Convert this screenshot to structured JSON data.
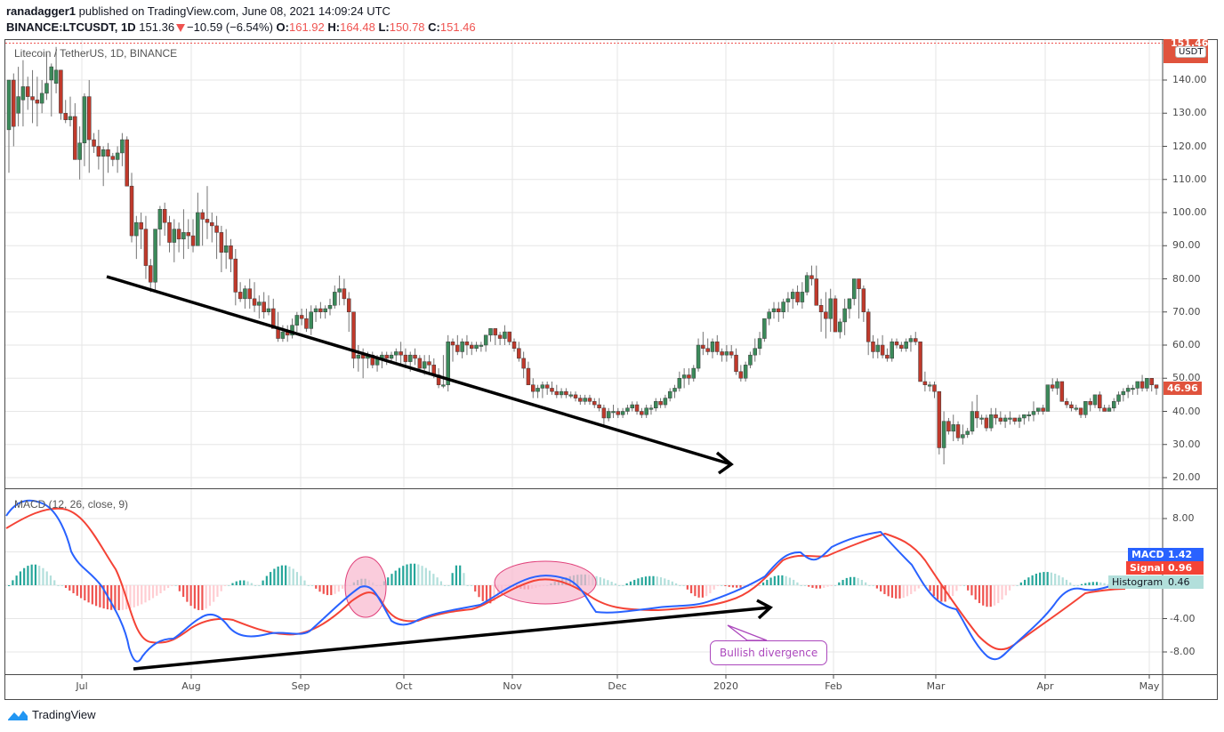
{
  "header": {
    "author": "ranadagger1",
    "published_text": "published on TradingView.com, June 08, 2021 14:09:24 UTC",
    "symbol": "BINANCE:LTCUSDT, 1D",
    "last": "151.36",
    "change": "−10.59 (−6.54%)",
    "o_label": "O:",
    "o": "161.92",
    "h_label": "H:",
    "h": "164.48",
    "l_label": "L:",
    "l": "150.78",
    "c_label": "C:",
    "c": "151.46"
  },
  "price_pane": {
    "legend": "Litecoin / TetherUS, 1D, BINANCE",
    "axis_labels": [
      "140.00",
      "130.00",
      "120.00",
      "110.00",
      "100.00",
      "90.00",
      "80.00",
      "70.00",
      "60.00",
      "50.00",
      "40.00",
      "30.00",
      "20.00"
    ],
    "current_price_tag": "46.96",
    "top_price_tag": "151.46",
    "currency_badge": "USDT"
  },
  "macd_pane": {
    "legend": "MACD (12, 26, close, 9)",
    "axis_labels": [
      "8.00",
      "-4.00",
      "-8.00"
    ],
    "tags": [
      {
        "label": "MACD",
        "value": "1.42",
        "color": "#2962ff"
      },
      {
        "label": "Signal",
        "value": "0.96",
        "color": "#f44336"
      },
      {
        "label": "Histogram",
        "value": "0.46",
        "color": "#b2dfdb"
      }
    ],
    "annotation": "Bullish divergence"
  },
  "time_axis": [
    "Jul",
    "Aug",
    "Sep",
    "Oct",
    "Nov",
    "Dec",
    "2020",
    "Feb",
    "Mar",
    "Apr",
    "May"
  ],
  "brand": "TradingView",
  "colors": {
    "up": "#26a69a",
    "up_candle": "#3b8a5a",
    "down_candle": "#c0392b",
    "macd": "#2962ff",
    "signal": "#f44336",
    "tag_red": "#e0533d"
  },
  "chart_data": [
    {
      "type": "candlestick",
      "title": "Litecoin / TetherUS, 1D, BINANCE",
      "xlabel": "",
      "ylabel": "USDT",
      "ylim": [
        18,
        150
      ],
      "x_ticks": [
        "Jul",
        "Aug",
        "Sep",
        "Oct",
        "Nov",
        "Dec",
        "2020",
        "Feb",
        "Mar",
        "Apr",
        "May"
      ],
      "close_path": [
        [
          "Jun (mid)",
          125
        ],
        [
          "late Jun",
          138
        ],
        [
          "Jul",
          122
        ],
        [
          "Jul (mid)",
          80
        ],
        [
          "late Jul",
          97
        ],
        [
          "Aug",
          98
        ],
        [
          "Aug (mid)",
          88
        ],
        [
          "late Aug",
          73
        ],
        [
          "Sep",
          66
        ],
        [
          "Sep (mid)",
          70
        ],
        [
          "late Sep",
          77
        ],
        [
          "Oct",
          55
        ],
        [
          "Oct (mid)",
          57
        ],
        [
          "late Oct",
          54
        ],
        [
          "Nov",
          60
        ],
        [
          "Nov (mid)",
          63
        ],
        [
          "late Nov",
          47
        ],
        [
          "Dec",
          47
        ],
        [
          "Dec (mid)",
          41
        ],
        [
          "2020",
          41
        ],
        [
          "Jan (mid)",
          58
        ],
        [
          "late Jan",
          58
        ],
        [
          "Feb",
          70
        ],
        [
          "Feb (mid)",
          80
        ],
        [
          "late Feb",
          77
        ],
        [
          "Mar",
          62
        ],
        [
          "Mar (mid)",
          32
        ],
        [
          "late Mar",
          40
        ],
        [
          "Apr",
          40
        ],
        [
          "Apr (mid)",
          42
        ],
        [
          "late Apr",
          44
        ],
        [
          "May",
          47
        ]
      ],
      "annotations": [
        "Descending trendline from ~81 (mid-Jul) to ~38 (early Jan)"
      ]
    },
    {
      "type": "line",
      "title": "MACD (12, 26, close, 9)",
      "ylim": [
        -10,
        10
      ],
      "series": [
        {
          "name": "MACD",
          "last": 1.42
        },
        {
          "name": "Signal",
          "last": 0.96
        },
        {
          "name": "Histogram",
          "last": 0.46
        }
      ],
      "annotations": [
        "Bullish divergence",
        "Rising trendline under MACD lows",
        "Two highlighted ellipses at Sep-end and Nov peaks"
      ]
    }
  ],
  "candles": [
    [
      125,
      132,
      112,
      140
    ],
    [
      140,
      142,
      120,
      126
    ],
    [
      130,
      144,
      126,
      135
    ],
    [
      134,
      146,
      126,
      138
    ],
    [
      138,
      141,
      131,
      135
    ],
    [
      135,
      143,
      127,
      134
    ],
    [
      134,
      141,
      126,
      133
    ],
    [
      133,
      140,
      130,
      136
    ],
    [
      136,
      148,
      134,
      139
    ],
    [
      140,
      145,
      129,
      144
    ],
    [
      139,
      150,
      136,
      143
    ],
    [
      143,
      141,
      128,
      130
    ],
    [
      130,
      134,
      127,
      128
    ],
    [
      128,
      135,
      126,
      129
    ],
    [
      129,
      133,
      118,
      116
    ],
    [
      116,
      126,
      110,
      121
    ],
    [
      121,
      136,
      114,
      135
    ],
    [
      135,
      140,
      112,
      122
    ],
    [
      122,
      124,
      118,
      120
    ],
    [
      120,
      125,
      113,
      117
    ],
    [
      117,
      120,
      108,
      119
    ],
    [
      119,
      121,
      112,
      117
    ],
    [
      117,
      118,
      114,
      116
    ],
    [
      116,
      120,
      112,
      118
    ],
    [
      118,
      124,
      114,
      122
    ],
    [
      122,
      123,
      109,
      108
    ],
    [
      108,
      112,
      91,
      93
    ],
    [
      93,
      99,
      86,
      97
    ],
    [
      97,
      100,
      89,
      95
    ],
    [
      95,
      99,
      80,
      84
    ],
    [
      84,
      86,
      76,
      79
    ],
    [
      79,
      95,
      76,
      95
    ],
    [
      95,
      102,
      90,
      101
    ],
    [
      101,
      103,
      93,
      97
    ],
    [
      97,
      99,
      88,
      91
    ],
    [
      91,
      98,
      85,
      95
    ],
    [
      95,
      97,
      88,
      92
    ],
    [
      92,
      101,
      86,
      94
    ],
    [
      94,
      98,
      89,
      93
    ],
    [
      93,
      98,
      88,
      90
    ],
    [
      90,
      106,
      92,
      100
    ],
    [
      100,
      101,
      90,
      98
    ],
    [
      98,
      108,
      92,
      97
    ],
    [
      97,
      100,
      91,
      96
    ],
    [
      96,
      99,
      86,
      94
    ],
    [
      94,
      96,
      82,
      88
    ],
    [
      88,
      95,
      83,
      90
    ],
    [
      90,
      92,
      82,
      86
    ],
    [
      86,
      89,
      72,
      76
    ],
    [
      76,
      79,
      73,
      74
    ],
    [
      74,
      78,
      71,
      77
    ],
    [
      77,
      80,
      71,
      74
    ],
    [
      74,
      79,
      70,
      72
    ],
    [
      72,
      75,
      68,
      73
    ],
    [
      73,
      76,
      68,
      70
    ],
    [
      70,
      75,
      69,
      71
    ],
    [
      71,
      74,
      66,
      65
    ],
    [
      65,
      70,
      61,
      62
    ],
    [
      62,
      66,
      61,
      64
    ],
    [
      64,
      66,
      61,
      63
    ],
    [
      63,
      68,
      62,
      66
    ],
    [
      66,
      70,
      64,
      69
    ],
    [
      69,
      71,
      66,
      68
    ],
    [
      68,
      71,
      64,
      65
    ],
    [
      65,
      72,
      63,
      70
    ],
    [
      70,
      72,
      67,
      71
    ],
    [
      71,
      73,
      68,
      70
    ],
    [
      70,
      72,
      68,
      71
    ],
    [
      71,
      74,
      69,
      72
    ],
    [
      72,
      78,
      71,
      76
    ],
    [
      76,
      81,
      72,
      77
    ],
    [
      77,
      80,
      72,
      74
    ],
    [
      74,
      76,
      64,
      70
    ],
    [
      70,
      68,
      53,
      56
    ],
    [
      56,
      60,
      52,
      57
    ],
    [
      57,
      59,
      50,
      56
    ],
    [
      56,
      58,
      53,
      57
    ],
    [
      57,
      58,
      53,
      54
    ],
    [
      54,
      57,
      52,
      56
    ],
    [
      56,
      58,
      53,
      57
    ],
    [
      57,
      58,
      54,
      56
    ],
    [
      56,
      58,
      55,
      57
    ],
    [
      57,
      59,
      55,
      58
    ],
    [
      58,
      61,
      54,
      57
    ],
    [
      57,
      59,
      53,
      55
    ],
    [
      55,
      58,
      52,
      57
    ],
    [
      57,
      59,
      54,
      56
    ],
    [
      56,
      57,
      52,
      53
    ],
    [
      53,
      57,
      51,
      55
    ],
    [
      55,
      57,
      51,
      54
    ],
    [
      54,
      56,
      50,
      51
    ],
    [
      51,
      53,
      47,
      48
    ],
    [
      48,
      57,
      47,
      48
    ],
    [
      48,
      63,
      46,
      61
    ],
    [
      61,
      62,
      55,
      60
    ],
    [
      60,
      63,
      57,
      58
    ],
    [
      58,
      62,
      56,
      61
    ],
    [
      61,
      63,
      57,
      60
    ],
    [
      60,
      61,
      57,
      59
    ],
    [
      59,
      61,
      58,
      60
    ],
    [
      60,
      61,
      58,
      60
    ],
    [
      60,
      63,
      58,
      63
    ],
    [
      63,
      65,
      61,
      65
    ],
    [
      65,
      65,
      60,
      63
    ],
    [
      63,
      64,
      60,
      62
    ],
    [
      62,
      66,
      60,
      64
    ],
    [
      64,
      64,
      60,
      61
    ],
    [
      61,
      62,
      58,
      59
    ],
    [
      59,
      61,
      55,
      56
    ],
    [
      56,
      58,
      50,
      53
    ],
    [
      53,
      55,
      48,
      48
    ],
    [
      48,
      50,
      44,
      46
    ],
    [
      46,
      48,
      44,
      47
    ],
    [
      47,
      49,
      44,
      48
    ],
    [
      48,
      49,
      45,
      47
    ],
    [
      47,
      49,
      45,
      46
    ],
    [
      46,
      48,
      44,
      45
    ],
    [
      45,
      47,
      44,
      46
    ],
    [
      46,
      47,
      44,
      45
    ],
    [
      45,
      46,
      44,
      45
    ],
    [
      45,
      46,
      43,
      44
    ],
    [
      44,
      45,
      42,
      43
    ],
    [
      43,
      45,
      42,
      44
    ],
    [
      44,
      45,
      42,
      43
    ],
    [
      43,
      44,
      41,
      42
    ],
    [
      42,
      44,
      40,
      41
    ],
    [
      41,
      42,
      36,
      38
    ],
    [
      38,
      41,
      37,
      40
    ],
    [
      40,
      42,
      38,
      40
    ],
    [
      40,
      41,
      38,
      39
    ],
    [
      39,
      41,
      38,
      40
    ],
    [
      40,
      42,
      39,
      41
    ],
    [
      41,
      43,
      40,
      42
    ],
    [
      42,
      43,
      39,
      40
    ],
    [
      40,
      41,
      38,
      39
    ],
    [
      39,
      42,
      38,
      41
    ],
    [
      41,
      42,
      39,
      41
    ],
    [
      41,
      44,
      40,
      43
    ],
    [
      43,
      44,
      41,
      42
    ],
    [
      42,
      45,
      41,
      44
    ],
    [
      44,
      47,
      43,
      46
    ],
    [
      46,
      48,
      44,
      47
    ],
    [
      47,
      52,
      46,
      50
    ],
    [
      50,
      53,
      47,
      51
    ],
    [
      51,
      53,
      48,
      50
    ],
    [
      50,
      54,
      49,
      53
    ],
    [
      53,
      62,
      52,
      60
    ],
    [
      60,
      64,
      57,
      59
    ],
    [
      59,
      62,
      57,
      58
    ],
    [
      58,
      62,
      56,
      61
    ],
    [
      61,
      63,
      57,
      58
    ],
    [
      58,
      59,
      55,
      57
    ],
    [
      57,
      60,
      55,
      58
    ],
    [
      58,
      60,
      56,
      57
    ],
    [
      57,
      59,
      51,
      52
    ],
    [
      52,
      54,
      49,
      50
    ],
    [
      50,
      55,
      49,
      54
    ],
    [
      54,
      58,
      53,
      57
    ],
    [
      57,
      62,
      55,
      59
    ],
    [
      59,
      64,
      57,
      62
    ],
    [
      62,
      67,
      61,
      68
    ],
    [
      68,
      71,
      66,
      70
    ],
    [
      70,
      73,
      68,
      71
    ],
    [
      71,
      73,
      67,
      70
    ],
    [
      70,
      74,
      68,
      73
    ],
    [
      73,
      76,
      70,
      74
    ],
    [
      74,
      77,
      71,
      76
    ],
    [
      76,
      78,
      72,
      73
    ],
    [
      73,
      79,
      71,
      76
    ],
    [
      76,
      82,
      75,
      81
    ],
    [
      81,
      84,
      78,
      80
    ],
    [
      80,
      84,
      74,
      72
    ],
    [
      72,
      74,
      64,
      70
    ],
    [
      70,
      76,
      62,
      68
    ],
    [
      68,
      77,
      64,
      74
    ],
    [
      74,
      75,
      64,
      64
    ],
    [
      64,
      68,
      62,
      67
    ],
    [
      67,
      74,
      63,
      71
    ],
    [
      71,
      74,
      68,
      74
    ],
    [
      74,
      80,
      72,
      80
    ],
    [
      80,
      79,
      68,
      77
    ],
    [
      77,
      78,
      67,
      70
    ],
    [
      70,
      71,
      57,
      61
    ],
    [
      61,
      63,
      56,
      58
    ],
    [
      58,
      62,
      56,
      60
    ],
    [
      60,
      63,
      56,
      57
    ],
    [
      57,
      59,
      55,
      56
    ],
    [
      56,
      62,
      55,
      61
    ],
    [
      61,
      62,
      59,
      60
    ],
    [
      60,
      61,
      58,
      59
    ],
    [
      59,
      62,
      58,
      61
    ],
    [
      61,
      63,
      58,
      62
    ],
    [
      62,
      64,
      60,
      61
    ],
    [
      61,
      61,
      50,
      49
    ],
    [
      49,
      52,
      46,
      48
    ],
    [
      48,
      49,
      46,
      48
    ],
    [
      48,
      49,
      44,
      46
    ],
    [
      46,
      46,
      27,
      29
    ],
    [
      29,
      40,
      24,
      37
    ],
    [
      37,
      38,
      33,
      34
    ],
    [
      34,
      39,
      31,
      36
    ],
    [
      36,
      37,
      31,
      32
    ],
    [
      32,
      36,
      30,
      33
    ],
    [
      33,
      35,
      32,
      34
    ],
    [
      34,
      43,
      33,
      40
    ],
    [
      40,
      45,
      35,
      38
    ],
    [
      38,
      39,
      36,
      38
    ],
    [
      38,
      39,
      34,
      35
    ],
    [
      35,
      41,
      34,
      39
    ],
    [
      39,
      41,
      36,
      38
    ],
    [
      38,
      40,
      36,
      37
    ],
    [
      37,
      39,
      35,
      38
    ],
    [
      38,
      40,
      36,
      38
    ],
    [
      38,
      38,
      36,
      37
    ],
    [
      37,
      39,
      35,
      38
    ],
    [
      38,
      39,
      36,
      39
    ],
    [
      39,
      40,
      37,
      39
    ],
    [
      39,
      43,
      37,
      40
    ],
    [
      40,
      41,
      39,
      41
    ],
    [
      41,
      42,
      39,
      40
    ],
    [
      40,
      48,
      40,
      48
    ],
    [
      48,
      50,
      46,
      47
    ],
    [
      47,
      50,
      45,
      49
    ],
    [
      49,
      49,
      43,
      43
    ],
    [
      43,
      44,
      41,
      42
    ],
    [
      42,
      43,
      40,
      41
    ],
    [
      41,
      42,
      40,
      41
    ],
    [
      41,
      40,
      38,
      39
    ],
    [
      39,
      42,
      38,
      43
    ],
    [
      43,
      44,
      40,
      42
    ],
    [
      42,
      45,
      41,
      45
    ],
    [
      45,
      46,
      40,
      41
    ],
    [
      41,
      42,
      40,
      40
    ],
    [
      40,
      42,
      40,
      41
    ],
    [
      41,
      44,
      40,
      43
    ],
    [
      43,
      46,
      42,
      45
    ],
    [
      45,
      47,
      43,
      46
    ],
    [
      46,
      48,
      44,
      47
    ],
    [
      47,
      48,
      45,
      47
    ],
    [
      47,
      49,
      45,
      49
    ],
    [
      49,
      51,
      46,
      47
    ],
    [
      47,
      50,
      46,
      50
    ],
    [
      50,
      49,
      46,
      48
    ],
    [
      48,
      48,
      45,
      47
    ]
  ]
}
